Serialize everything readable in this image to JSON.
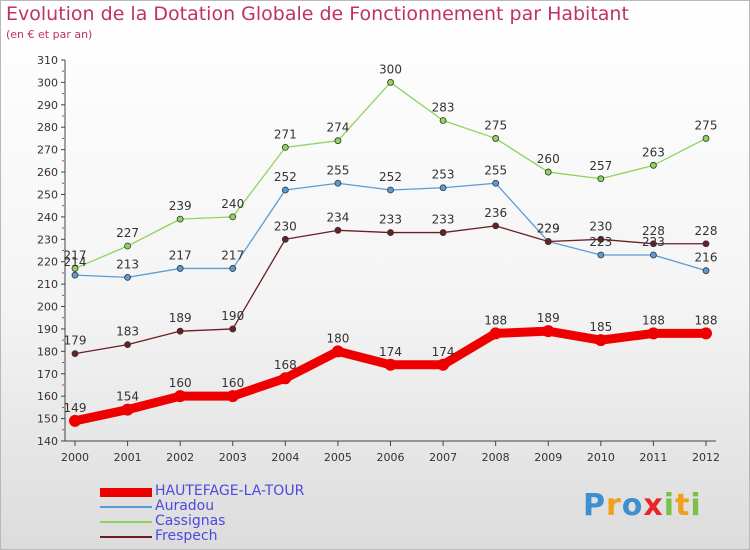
{
  "title": "Evolution de la Dotation Globale de Fonctionnement par Habitant",
  "subtitle": "(en € et par an)",
  "logo": {
    "text": "Proxiti",
    "letters": [
      {
        "ch": "P",
        "color": "#3d8fd0"
      },
      {
        "ch": "r",
        "color": "#f0a01a"
      },
      {
        "ch": "o",
        "color": "#3d8fd0"
      },
      {
        "ch": "x",
        "color": "#e8262a"
      },
      {
        "ch": "i",
        "color": "#7ac043"
      },
      {
        "ch": "t",
        "color": "#f0a01a"
      },
      {
        "ch": "i",
        "color": "#7ac043"
      }
    ]
  },
  "chart_data": {
    "type": "line",
    "title": "Evolution de la Dotation Globale de Fonctionnement par Habitant",
    "subtitle": "(en € et par an)",
    "x": [
      2000,
      2001,
      2002,
      2003,
      2004,
      2005,
      2006,
      2007,
      2008,
      2009,
      2010,
      2011,
      2012
    ],
    "ylim": [
      140,
      310
    ],
    "yticks": [
      140,
      150,
      160,
      170,
      180,
      190,
      200,
      210,
      220,
      230,
      240,
      250,
      260,
      270,
      280,
      290,
      300,
      310
    ],
    "grid": false,
    "legend_position": "bottom-left",
    "series": [
      {
        "name": "HAUTEFAGE-LA-TOUR",
        "color": "#ee0000",
        "values": [
          149,
          154,
          160,
          160,
          168,
          180,
          174,
          174,
          188,
          189,
          185,
          188,
          188
        ]
      },
      {
        "name": "Auradou",
        "color": "#5b9bd5",
        "values": [
          214,
          213,
          217,
          217,
          252,
          255,
          252,
          253,
          255,
          229,
          223,
          223,
          216
        ]
      },
      {
        "name": "Cassignas",
        "color": "#8ed45a",
        "values": [
          217,
          227,
          239,
          240,
          271,
          274,
          300,
          283,
          275,
          260,
          257,
          263,
          275
        ]
      },
      {
        "name": "Frespech",
        "color": "#6b1e24",
        "values": [
          179,
          183,
          189,
          190,
          230,
          234,
          233,
          233,
          236,
          229,
          230,
          228,
          228
        ]
      }
    ]
  }
}
